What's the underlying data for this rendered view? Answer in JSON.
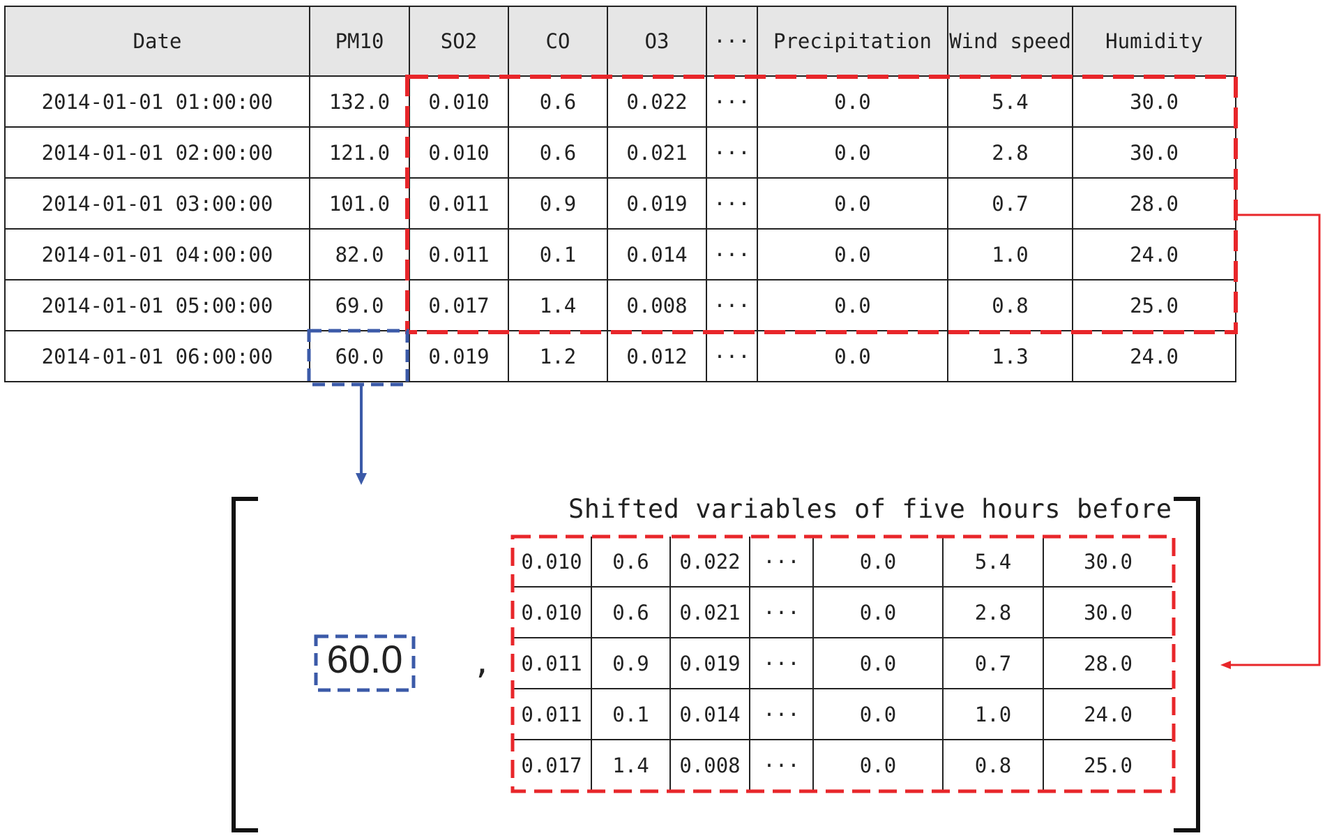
{
  "top_table": {
    "headers": [
      "Date",
      "PM10",
      "SO2",
      "CO",
      "O3",
      "···",
      "Precipitation",
      "Wind speed",
      "Humidity"
    ],
    "rows": [
      [
        "2014-01-01 01:00:00",
        "132.0",
        "0.010",
        "0.6",
        "0.022",
        "···",
        "0.0",
        "5.4",
        "30.0"
      ],
      [
        "2014-01-01 02:00:00",
        "121.0",
        "0.010",
        "0.6",
        "0.021",
        "···",
        "0.0",
        "2.8",
        "30.0"
      ],
      [
        "2014-01-01 03:00:00",
        "101.0",
        "0.011",
        "0.9",
        "0.019",
        "···",
        "0.0",
        "0.7",
        "28.0"
      ],
      [
        "2014-01-01 04:00:00",
        "82.0",
        "0.011",
        "0.1",
        "0.014",
        "···",
        "0.0",
        "1.0",
        "24.0"
      ],
      [
        "2014-01-01 05:00:00",
        "69.0",
        "0.017",
        "1.4",
        "0.008",
        "···",
        "0.0",
        "0.8",
        "25.0"
      ],
      [
        "2014-01-01 06:00:00",
        "60.0",
        "0.019",
        "1.2",
        "0.012",
        "···",
        "0.0",
        "1.3",
        "24.0"
      ]
    ]
  },
  "shifted_title": "Shifted variables of five hours before",
  "target_value": "60.0",
  "separator": ",",
  "bottom_table": {
    "rows": [
      [
        "0.010",
        "0.6",
        "0.022",
        "···",
        "0.0",
        "5.4",
        "30.0"
      ],
      [
        "0.010",
        "0.6",
        "0.021",
        "···",
        "0.0",
        "2.8",
        "30.0"
      ],
      [
        "0.011",
        "0.9",
        "0.019",
        "···",
        "0.0",
        "0.7",
        "28.0"
      ],
      [
        "0.011",
        "0.1",
        "0.014",
        "···",
        "0.0",
        "1.0",
        "24.0"
      ],
      [
        "0.017",
        "1.4",
        "0.008",
        "···",
        "0.0",
        "0.8",
        "25.0"
      ]
    ]
  },
  "colors": {
    "target_highlight": "#3b5aa8",
    "features_highlight": "#e8262a",
    "header_fill": "#e6e6e6"
  }
}
